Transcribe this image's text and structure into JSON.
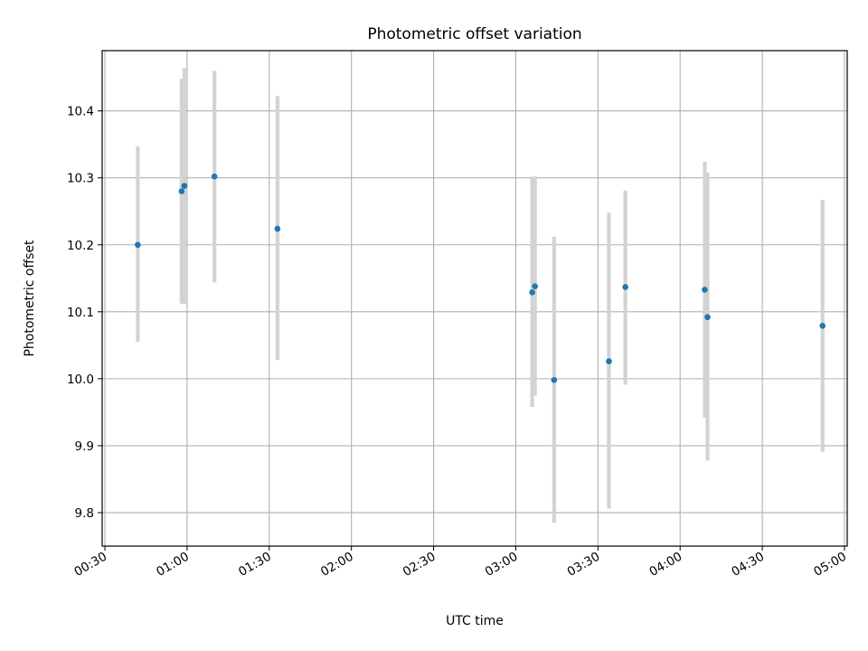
{
  "chart_data": {
    "type": "scatter",
    "title": "Photometric offset variation",
    "xlabel": "UTC time",
    "ylabel": "Photometric offset",
    "grid": true,
    "xlim": [
      "00:29",
      "05:01"
    ],
    "ylim": [
      9.75,
      10.49
    ],
    "x_ticks": [
      "00:30",
      "01:00",
      "01:30",
      "02:00",
      "02:30",
      "03:00",
      "03:30",
      "04:00",
      "04:30",
      "05:00"
    ],
    "y_ticks": [
      "9.8",
      "9.9",
      "10.0",
      "10.1",
      "10.2",
      "10.3",
      "10.4"
    ],
    "colors": {
      "points": "#1f77b4",
      "error_bars": "#d3d3d3",
      "grid": "#b0b0b0"
    },
    "series": [
      {
        "points": [
          {
            "x": "00:42",
            "y": 10.2,
            "ylow": 10.055,
            "yhigh": 10.347
          },
          {
            "x": "00:58",
            "y": 10.28,
            "ylow": 10.112,
            "yhigh": 10.448
          },
          {
            "x": "00:59",
            "y": 10.288,
            "ylow": 10.112,
            "yhigh": 10.464
          },
          {
            "x": "01:10",
            "y": 10.302,
            "ylow": 10.144,
            "yhigh": 10.46
          },
          {
            "x": "01:33",
            "y": 10.224,
            "ylow": 10.028,
            "yhigh": 10.422
          },
          {
            "x": "03:06",
            "y": 10.129,
            "ylow": 9.958,
            "yhigh": 10.302
          },
          {
            "x": "03:07",
            "y": 10.138,
            "ylow": 9.975,
            "yhigh": 10.302
          },
          {
            "x": "03:14",
            "y": 9.998,
            "ylow": 9.785,
            "yhigh": 10.212
          },
          {
            "x": "03:34",
            "y": 10.026,
            "ylow": 9.806,
            "yhigh": 10.248
          },
          {
            "x": "03:40",
            "y": 10.137,
            "ylow": 9.991,
            "yhigh": 10.281
          },
          {
            "x": "04:09",
            "y": 10.133,
            "ylow": 9.942,
            "yhigh": 10.324
          },
          {
            "x": "04:10",
            "y": 10.092,
            "ylow": 9.878,
            "yhigh": 10.308
          },
          {
            "x": "04:52",
            "y": 10.079,
            "ylow": 9.891,
            "yhigh": 10.267
          }
        ]
      }
    ]
  }
}
